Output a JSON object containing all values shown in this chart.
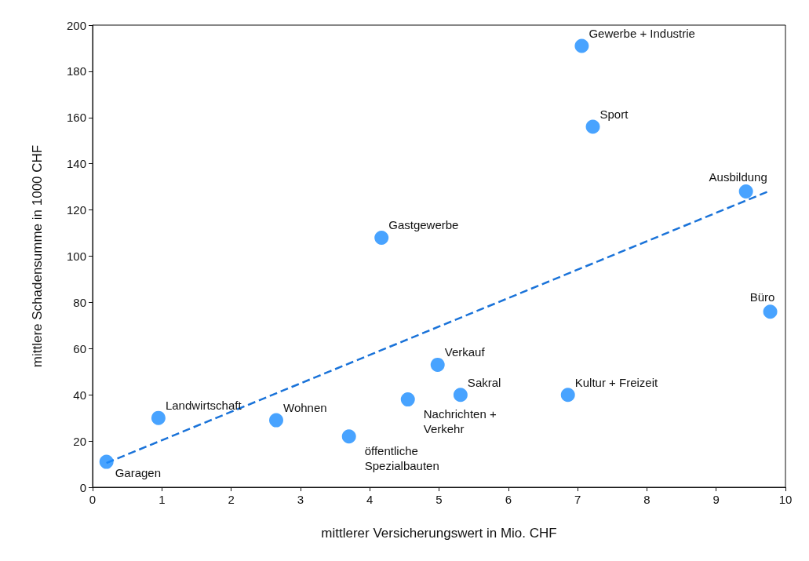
{
  "chart_data": {
    "type": "scatter",
    "xlabel": "mittlerer Versicherungswert in Mio. CHF",
    "ylabel": "mittlere Schadensumme in 1000 CHF",
    "xlim": [
      0,
      10
    ],
    "xticks": [
      0,
      1,
      2,
      3,
      4,
      5,
      6,
      7,
      8,
      9,
      10
    ],
    "ylim": [
      0,
      200
    ],
    "yticks": [
      0,
      20,
      40,
      60,
      80,
      100,
      120,
      140,
      160,
      180,
      200
    ],
    "grid": false,
    "series": [
      {
        "color": "#1a8cff",
        "marker": "circle",
        "x": [
          0.2,
          0.95,
          2.65,
          3.7,
          4.55,
          4.98,
          5.31,
          6.86,
          4.17,
          9.78,
          9.43,
          7.22,
          7.06
        ],
        "values": [
          11,
          30,
          29,
          22,
          38,
          53,
          40,
          40,
          108,
          76,
          128,
          156,
          191
        ]
      },
      {
        "type": "line",
        "color": "#1a73d9",
        "marker": "none",
        "line_style": "dashed",
        "x": [
          0.2,
          9.75
        ],
        "values": [
          10.5,
          128
        ]
      }
    ],
    "annotations": [
      {
        "text": "Garagen",
        "x": 0.2,
        "y": 11
      },
      {
        "text": "Landwirtschaft",
        "x": 0.95,
        "y": 30
      },
      {
        "text": "Wohnen",
        "x": 2.65,
        "y": 29
      },
      {
        "text": "öffentliche\nSpezialbauten",
        "x": 3.7,
        "y": 22
      },
      {
        "text": "Nachrichten +\nVerkehr",
        "x": 4.55,
        "y": 38
      },
      {
        "text": "Verkauf",
        "x": 4.98,
        "y": 53
      },
      {
        "text": "Sakral",
        "x": 5.31,
        "y": 40
      },
      {
        "text": "Kultur + Freizeit",
        "x": 6.86,
        "y": 40
      },
      {
        "text": "Gastgewerbe",
        "x": 4.17,
        "y": 108
      },
      {
        "text": "Büro",
        "x": 9.78,
        "y": 76
      },
      {
        "text": "Ausbildung",
        "x": 9.43,
        "y": 128
      },
      {
        "text": "Sport",
        "x": 7.22,
        "y": 156
      },
      {
        "text": "Gewerbe + Industrie",
        "x": 7.06,
        "y": 191
      }
    ]
  }
}
